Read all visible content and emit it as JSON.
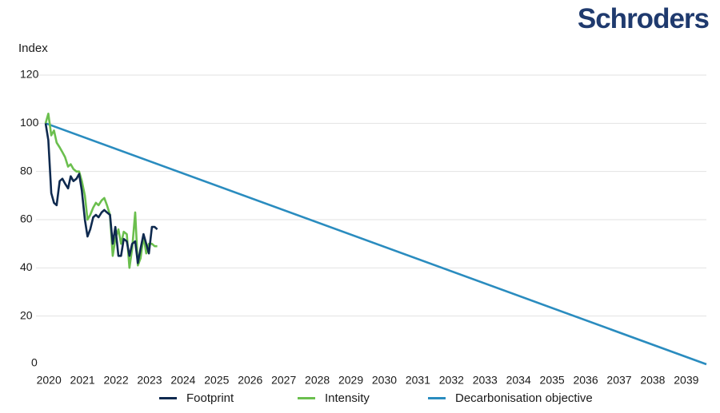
{
  "brand": {
    "name": "Schroders",
    "color": "#1f3a6e"
  },
  "chart_data": {
    "type": "line",
    "title": "",
    "xlabel": "",
    "ylabel": "Index",
    "ylim": [
      0,
      120
    ],
    "xlim": [
      2020,
      2039.7
    ],
    "yticks": [
      0,
      20,
      40,
      60,
      80,
      100,
      120
    ],
    "xticks": [
      "2020",
      "2021",
      "2022",
      "2023",
      "2024",
      "2025",
      "2026",
      "2027",
      "2028",
      "2029",
      "2030",
      "2031",
      "2032",
      "2033",
      "2034",
      "2035",
      "2036",
      "2037",
      "2038",
      "2039"
    ],
    "grid": "horizontal",
    "legend": "bottom",
    "series": [
      {
        "name": "Footprint",
        "color": "#0f2a4f",
        "x": [
          2020.0,
          2020.08,
          2020.17,
          2020.25,
          2020.33,
          2020.42,
          2020.5,
          2020.58,
          2020.67,
          2020.75,
          2020.83,
          2020.92,
          2021.0,
          2021.08,
          2021.17,
          2021.25,
          2021.33,
          2021.42,
          2021.5,
          2021.58,
          2021.67,
          2021.75,
          2021.83,
          2021.92,
          2022.0,
          2022.08,
          2022.17,
          2022.25,
          2022.33,
          2022.42,
          2022.5,
          2022.58,
          2022.67,
          2022.75,
          2022.83,
          2022.92,
          2023.0,
          2023.08,
          2023.17,
          2023.25,
          2023.33,
          2023.42,
          2023.5,
          2023.58
        ],
        "values": [
          100,
          93,
          71,
          67,
          66,
          76,
          77,
          75,
          73,
          78,
          76,
          77,
          79,
          72,
          60,
          53,
          56,
          61,
          62,
          61,
          63,
          64,
          63,
          62,
          50,
          57,
          45,
          45,
          52,
          51,
          45,
          50,
          51,
          42,
          48,
          54,
          50,
          46,
          57,
          57,
          56,
          null,
          null,
          null
        ]
      },
      {
        "name": "Intensity",
        "color": "#6bbf4e",
        "x": [
          2020.0,
          2020.08,
          2020.17,
          2020.25,
          2020.33,
          2020.42,
          2020.5,
          2020.58,
          2020.67,
          2020.75,
          2020.83,
          2020.92,
          2021.0,
          2021.08,
          2021.17,
          2021.25,
          2021.33,
          2021.42,
          2021.5,
          2021.58,
          2021.67,
          2021.75,
          2021.83,
          2021.92,
          2022.0,
          2022.08,
          2022.17,
          2022.25,
          2022.33,
          2022.42,
          2022.5,
          2022.58,
          2022.67,
          2022.75,
          2022.83,
          2022.92,
          2023.0,
          2023.08,
          2023.17,
          2023.25,
          2023.33,
          2023.42,
          2023.5,
          2023.58
        ],
        "values": [
          100,
          104,
          95,
          97,
          92,
          90,
          88,
          86,
          82,
          83,
          81,
          80,
          80,
          76,
          70,
          60,
          62,
          65,
          67,
          66,
          68,
          69,
          66,
          62,
          45,
          52,
          56,
          50,
          55,
          54,
          40,
          48,
          63,
          41,
          44,
          53,
          46,
          50,
          50,
          49,
          49,
          null,
          null,
          null
        ]
      },
      {
        "name": "Decarbonisation objective",
        "color": "#2a8cbf",
        "x": [
          2020,
          2039.7
        ],
        "values": [
          100,
          0
        ]
      }
    ]
  }
}
